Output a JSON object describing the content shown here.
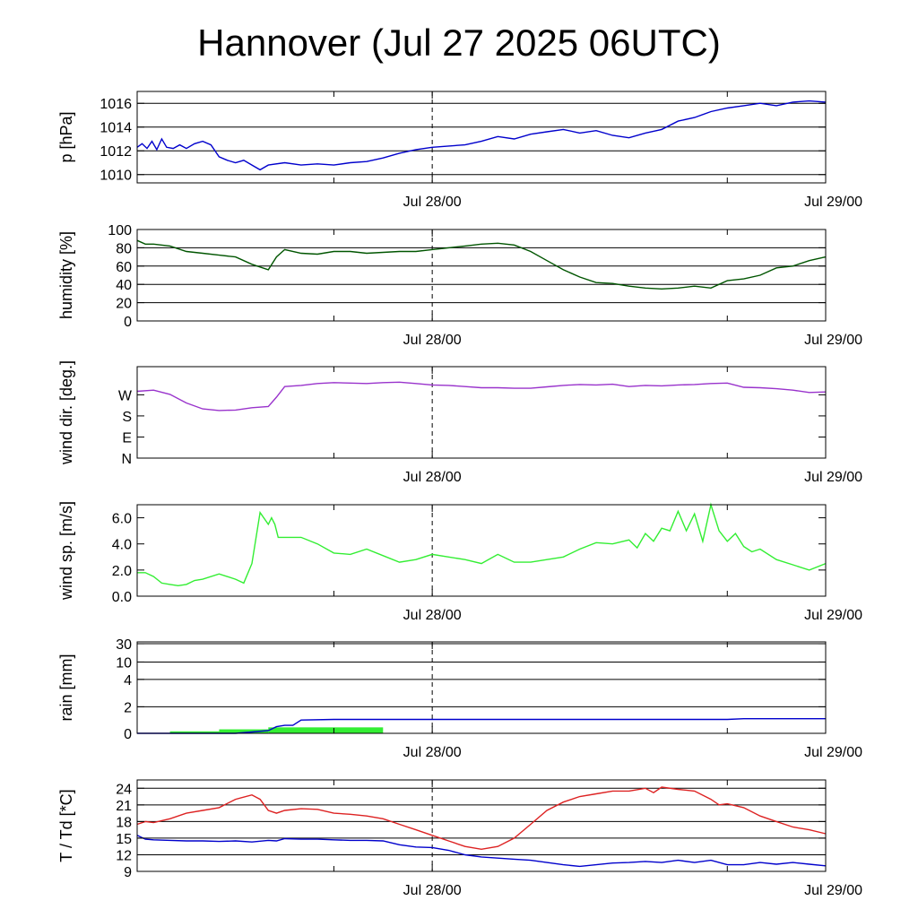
{
  "title": "Hannover (Jul 27 2025 06UTC)",
  "chart_data": [
    {
      "type": "line",
      "id": "pressure",
      "ylabel": "p [hPa]",
      "ylim": [
        1009.3,
        1017.0
      ],
      "yticks": [
        1010,
        1012,
        1014,
        1016
      ],
      "ytick_labels": [
        "1010",
        "1012",
        "1014",
        "1016"
      ],
      "xticks": [
        18,
        42
      ],
      "xtick_labels": [
        "Jul 28/00",
        "Jul 29/00"
      ],
      "minor_xticks": [
        12,
        36
      ],
      "grid": true,
      "series": [
        {
          "color": "#0000cc",
          "x": [
            0,
            0.3,
            0.6,
            0.9,
            1.2,
            1.5,
            1.8,
            2.2,
            2.6,
            3.0,
            3.5,
            4.0,
            4.5,
            5.0,
            5.5,
            6.0,
            6.5,
            7.0,
            7.5,
            8.0,
            9,
            10,
            11,
            12,
            13,
            14,
            15,
            16,
            17,
            18,
            19,
            20,
            21,
            22,
            23,
            24,
            25,
            26,
            27,
            28,
            29,
            30,
            31,
            32,
            33,
            34,
            35,
            36,
            37,
            38,
            39,
            40,
            41,
            42
          ],
          "y": [
            1012.3,
            1012.6,
            1012.2,
            1012.8,
            1012.1,
            1013.0,
            1012.3,
            1012.2,
            1012.5,
            1012.2,
            1012.6,
            1012.8,
            1012.5,
            1011.5,
            1011.2,
            1011.0,
            1011.2,
            1010.8,
            1010.4,
            1010.8,
            1011.0,
            1010.8,
            1010.9,
            1010.8,
            1011.0,
            1011.1,
            1011.4,
            1011.8,
            1012.1,
            1012.3,
            1012.4,
            1012.5,
            1012.8,
            1013.2,
            1013.0,
            1013.4,
            1013.6,
            1013.8,
            1013.5,
            1013.7,
            1013.3,
            1013.1,
            1013.5,
            1013.8,
            1014.5,
            1014.8,
            1015.3,
            1015.6,
            1015.8,
            1016.0,
            1015.8,
            1016.1,
            1016.2,
            1016.1
          ]
        }
      ]
    },
    {
      "type": "line",
      "id": "humidity",
      "ylabel": "humidity [%]",
      "ylim": [
        0,
        100
      ],
      "yticks": [
        0,
        20,
        40,
        60,
        80,
        100
      ],
      "ytick_labels": [
        "0",
        "20",
        "40",
        "60",
        "80",
        "100"
      ],
      "xticks": [
        18,
        42
      ],
      "xtick_labels": [
        "Jul 28/00",
        "Jul 29/00"
      ],
      "minor_xticks": [
        12,
        36
      ],
      "grid": true,
      "series": [
        {
          "color": "#005500",
          "x": [
            0,
            0.5,
            1,
            2,
            3,
            4,
            5,
            6,
            7,
            8,
            8.5,
            9,
            10,
            11,
            12,
            13,
            14,
            15,
            16,
            17,
            18,
            19,
            20,
            21,
            22,
            23,
            24,
            25,
            26,
            27,
            28,
            29,
            30,
            31,
            32,
            33,
            34,
            35,
            36,
            37,
            38,
            39,
            40,
            41,
            42
          ],
          "y": [
            88,
            84,
            84,
            82,
            76,
            74,
            72,
            70,
            62,
            56,
            70,
            78,
            74,
            73,
            76,
            76,
            74,
            75,
            76,
            76,
            78,
            80,
            82,
            84,
            85,
            83,
            76,
            66,
            56,
            48,
            42,
            41,
            38,
            36,
            35,
            36,
            38,
            36,
            44,
            46,
            50,
            58,
            60,
            66,
            70
          ]
        }
      ]
    },
    {
      "type": "line",
      "id": "wind_dir",
      "ylabel": "wind dir. [deg.]",
      "ylim": [
        0,
        390
      ],
      "yticks": [
        0,
        90,
        180,
        270
      ],
      "ytick_labels": [
        "N",
        "E",
        "S",
        "W"
      ],
      "xticks": [
        18,
        42
      ],
      "xtick_labels": [
        "Jul 28/00",
        "Jul 29/00"
      ],
      "minor_xticks": [
        12,
        36
      ],
      "grid": false,
      "series": [
        {
          "color": "#9933cc",
          "x": [
            0,
            1,
            2,
            3,
            4,
            5,
            6,
            7,
            8,
            8.5,
            9,
            10,
            11,
            12,
            13,
            14,
            15,
            16,
            17,
            18,
            19,
            20,
            21,
            22,
            23,
            24,
            25,
            26,
            27,
            28,
            29,
            30,
            31,
            32,
            33,
            34,
            35,
            36,
            37,
            38,
            39,
            40,
            41,
            42
          ],
          "y": [
            285,
            290,
            272,
            235,
            210,
            203,
            205,
            215,
            220,
            260,
            305,
            310,
            318,
            322,
            320,
            318,
            322,
            324,
            318,
            312,
            310,
            305,
            300,
            300,
            298,
            298,
            304,
            310,
            314,
            312,
            315,
            305,
            310,
            308,
            312,
            314,
            318,
            320,
            302,
            300,
            296,
            290,
            280,
            282
          ]
        }
      ]
    },
    {
      "type": "line",
      "id": "wind_speed",
      "ylabel": "wind sp. [m/s]",
      "ylim": [
        0,
        7.0
      ],
      "yticks": [
        0,
        2,
        4,
        6
      ],
      "ytick_labels": [
        "0.0",
        "2.0",
        "4.0",
        "6.0"
      ],
      "xticks": [
        18,
        42
      ],
      "xtick_labels": [
        "Jul 28/00",
        "Jul 29/00"
      ],
      "minor_xticks": [
        12,
        36
      ],
      "grid": false,
      "series": [
        {
          "color": "#33ee33",
          "x": [
            0,
            0.5,
            1,
            1.5,
            2,
            2.5,
            3,
            3.5,
            4,
            5,
            6,
            6.5,
            7,
            7.5,
            8,
            8.2,
            8.4,
            8.6,
            9,
            9.5,
            10,
            11,
            12,
            13,
            14,
            15,
            16,
            17,
            18,
            19,
            20,
            21,
            22,
            23,
            24,
            25,
            26,
            27,
            28,
            29,
            30,
            30.5,
            31,
            31.5,
            32,
            32.5,
            33,
            33.5,
            34,
            34.5,
            35,
            35.5,
            36,
            36.5,
            37,
            37.5,
            38,
            39,
            40,
            41,
            42
          ],
          "y": [
            1.8,
            1.8,
            1.5,
            1.0,
            0.9,
            0.8,
            0.9,
            1.2,
            1.3,
            1.7,
            1.3,
            1.0,
            2.5,
            6.4,
            5.5,
            6.0,
            5.5,
            4.5,
            4.5,
            4.5,
            4.5,
            4.0,
            3.3,
            3.2,
            3.6,
            3.1,
            2.6,
            2.8,
            3.2,
            3.0,
            2.8,
            2.5,
            3.2,
            2.6,
            2.6,
            2.8,
            3.0,
            3.6,
            4.1,
            4.0,
            4.3,
            3.7,
            4.8,
            4.2,
            5.2,
            5.0,
            6.5,
            5.0,
            6.3,
            4.2,
            7.0,
            5.0,
            4.2,
            4.8,
            3.8,
            3.4,
            3.6,
            2.8,
            2.4,
            2.0,
            2.5
          ]
        }
      ]
    },
    {
      "type": "line",
      "id": "rain",
      "ylabel": "rain [mm]",
      "ytick_values_real": [
        0,
        2,
        4,
        10,
        30
      ],
      "ytick_labels": [
        "0",
        "2",
        "4",
        "10",
        "30"
      ],
      "xticks": [
        18,
        42
      ],
      "xtick_labels": [
        "Jul 28/00",
        "Jul 29/00"
      ],
      "minor_xticks": [
        12,
        36
      ],
      "grid": true,
      "series": [
        {
          "name": "",
          "color": "#0000cc",
          "x": [
            0,
            3,
            6,
            7,
            8,
            8.5,
            9,
            9.5,
            10,
            12,
            18,
            24,
            30,
            36,
            37,
            42
          ],
          "y": [
            0,
            0,
            0,
            0.1,
            0.2,
            0.5,
            0.6,
            0.6,
            1.0,
            1.05,
            1.05,
            1.05,
            1.05,
            1.05,
            1.1,
            1.1
          ]
        }
      ],
      "bars": {
        "color": "#33ee33",
        "x0": [
          2,
          5,
          8
        ],
        "x1": [
          5,
          8,
          15
        ],
        "values": [
          0.15,
          0.3,
          0.45
        ]
      }
    },
    {
      "type": "line",
      "id": "temperature",
      "ylabel": "T / Td [*C]",
      "ylim": [
        9,
        25.5
      ],
      "yticks": [
        9,
        12,
        15,
        18,
        21,
        24
      ],
      "ytick_labels": [
        "9",
        "12",
        "15",
        "18",
        "21",
        "24"
      ],
      "xticks": [
        18,
        42
      ],
      "xtick_labels": [
        "Jul 28/00",
        "Jul 29/00"
      ],
      "minor_xticks": [
        12,
        36
      ],
      "grid": true,
      "series": [
        {
          "color": "#dd2222",
          "x": [
            0,
            0.5,
            1,
            2,
            3,
            4,
            5,
            6,
            7,
            7.5,
            8,
            8.5,
            9,
            10,
            11,
            12,
            13,
            14,
            15,
            16,
            17,
            18,
            19,
            20,
            21,
            22,
            23,
            24,
            25,
            26,
            27,
            28,
            29,
            30,
            31,
            31.5,
            32,
            33,
            34,
            35,
            35.5,
            36,
            37,
            38,
            39,
            40,
            41,
            42
          ],
          "y": [
            17.5,
            18.0,
            17.8,
            18.5,
            19.5,
            20.0,
            20.5,
            22.0,
            22.8,
            22.0,
            20.0,
            19.5,
            20.0,
            20.3,
            20.2,
            19.5,
            19.3,
            19.0,
            18.5,
            17.5,
            16.5,
            15.5,
            14.5,
            13.5,
            13.0,
            13.5,
            15.0,
            17.5,
            20.0,
            21.5,
            22.5,
            23.0,
            23.5,
            23.5,
            24.0,
            23.2,
            24.2,
            23.8,
            23.5,
            22.0,
            21.0,
            21.2,
            20.5,
            19.0,
            18.0,
            17.0,
            16.5,
            15.8
          ]
        },
        {
          "color": "#0000cc",
          "x": [
            0,
            0.5,
            1,
            2,
            3,
            4,
            5,
            6,
            7,
            8,
            8.5,
            9,
            10,
            11,
            12,
            13,
            14,
            15,
            16,
            17,
            18,
            19,
            20,
            21,
            22,
            23,
            24,
            25,
            26,
            27,
            28,
            29,
            30,
            31,
            32,
            33,
            34,
            35,
            36,
            37,
            38,
            39,
            40,
            41,
            42
          ],
          "y": [
            15.5,
            14.8,
            14.7,
            14.6,
            14.5,
            14.5,
            14.4,
            14.5,
            14.3,
            14.6,
            14.5,
            14.9,
            14.8,
            14.8,
            14.7,
            14.6,
            14.6,
            14.5,
            13.8,
            13.4,
            13.3,
            12.8,
            12.0,
            11.6,
            11.4,
            11.2,
            11.0,
            10.6,
            10.2,
            9.9,
            10.2,
            10.5,
            10.6,
            10.8,
            10.6,
            11.0,
            10.6,
            11.0,
            10.2,
            10.2,
            10.6,
            10.3,
            10.6,
            10.3,
            10.0
          ]
        }
      ]
    }
  ]
}
